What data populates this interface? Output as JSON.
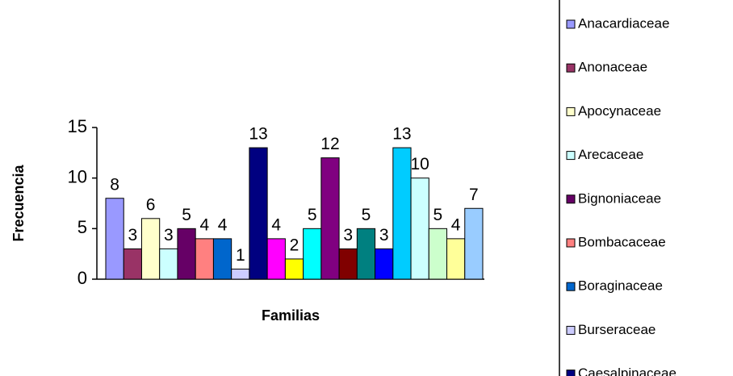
{
  "chart_data": {
    "type": "bar",
    "x_label": "Familias",
    "y_label": "Frecuencia",
    "categories": [
      "Anacardiaceae",
      "Anonaceae",
      "Apocynaceae",
      "Arecaceae",
      "Bignoniaceae",
      "Bombacaceae",
      "Boraginaceae",
      "Burseraceae",
      "Caesalpinaceae",
      null,
      null,
      null,
      null,
      null,
      null,
      null,
      null,
      null,
      null,
      null,
      null
    ],
    "values": [
      8,
      3,
      6,
      3,
      5,
      4,
      4,
      1,
      13,
      4,
      2,
      5,
      12,
      3,
      5,
      3,
      13,
      10,
      5,
      4,
      7
    ],
    "colors": [
      "#9999ff",
      "#993366",
      "#ffffcc",
      "#ccffff",
      "#660066",
      "#ff8080",
      "#0066cc",
      "#ccccff",
      "#000080",
      "#ff00ff",
      "#ffff00",
      "#00ffff",
      "#800080",
      "#800000",
      "#008080",
      "#0000ff",
      "#00ccff",
      "#ccffff",
      "#ccffcc",
      "#ffff99",
      "#99ccff"
    ],
    "ylim": [
      0,
      15
    ],
    "yticks": [
      0,
      5,
      10,
      15
    ],
    "legend": "right"
  }
}
